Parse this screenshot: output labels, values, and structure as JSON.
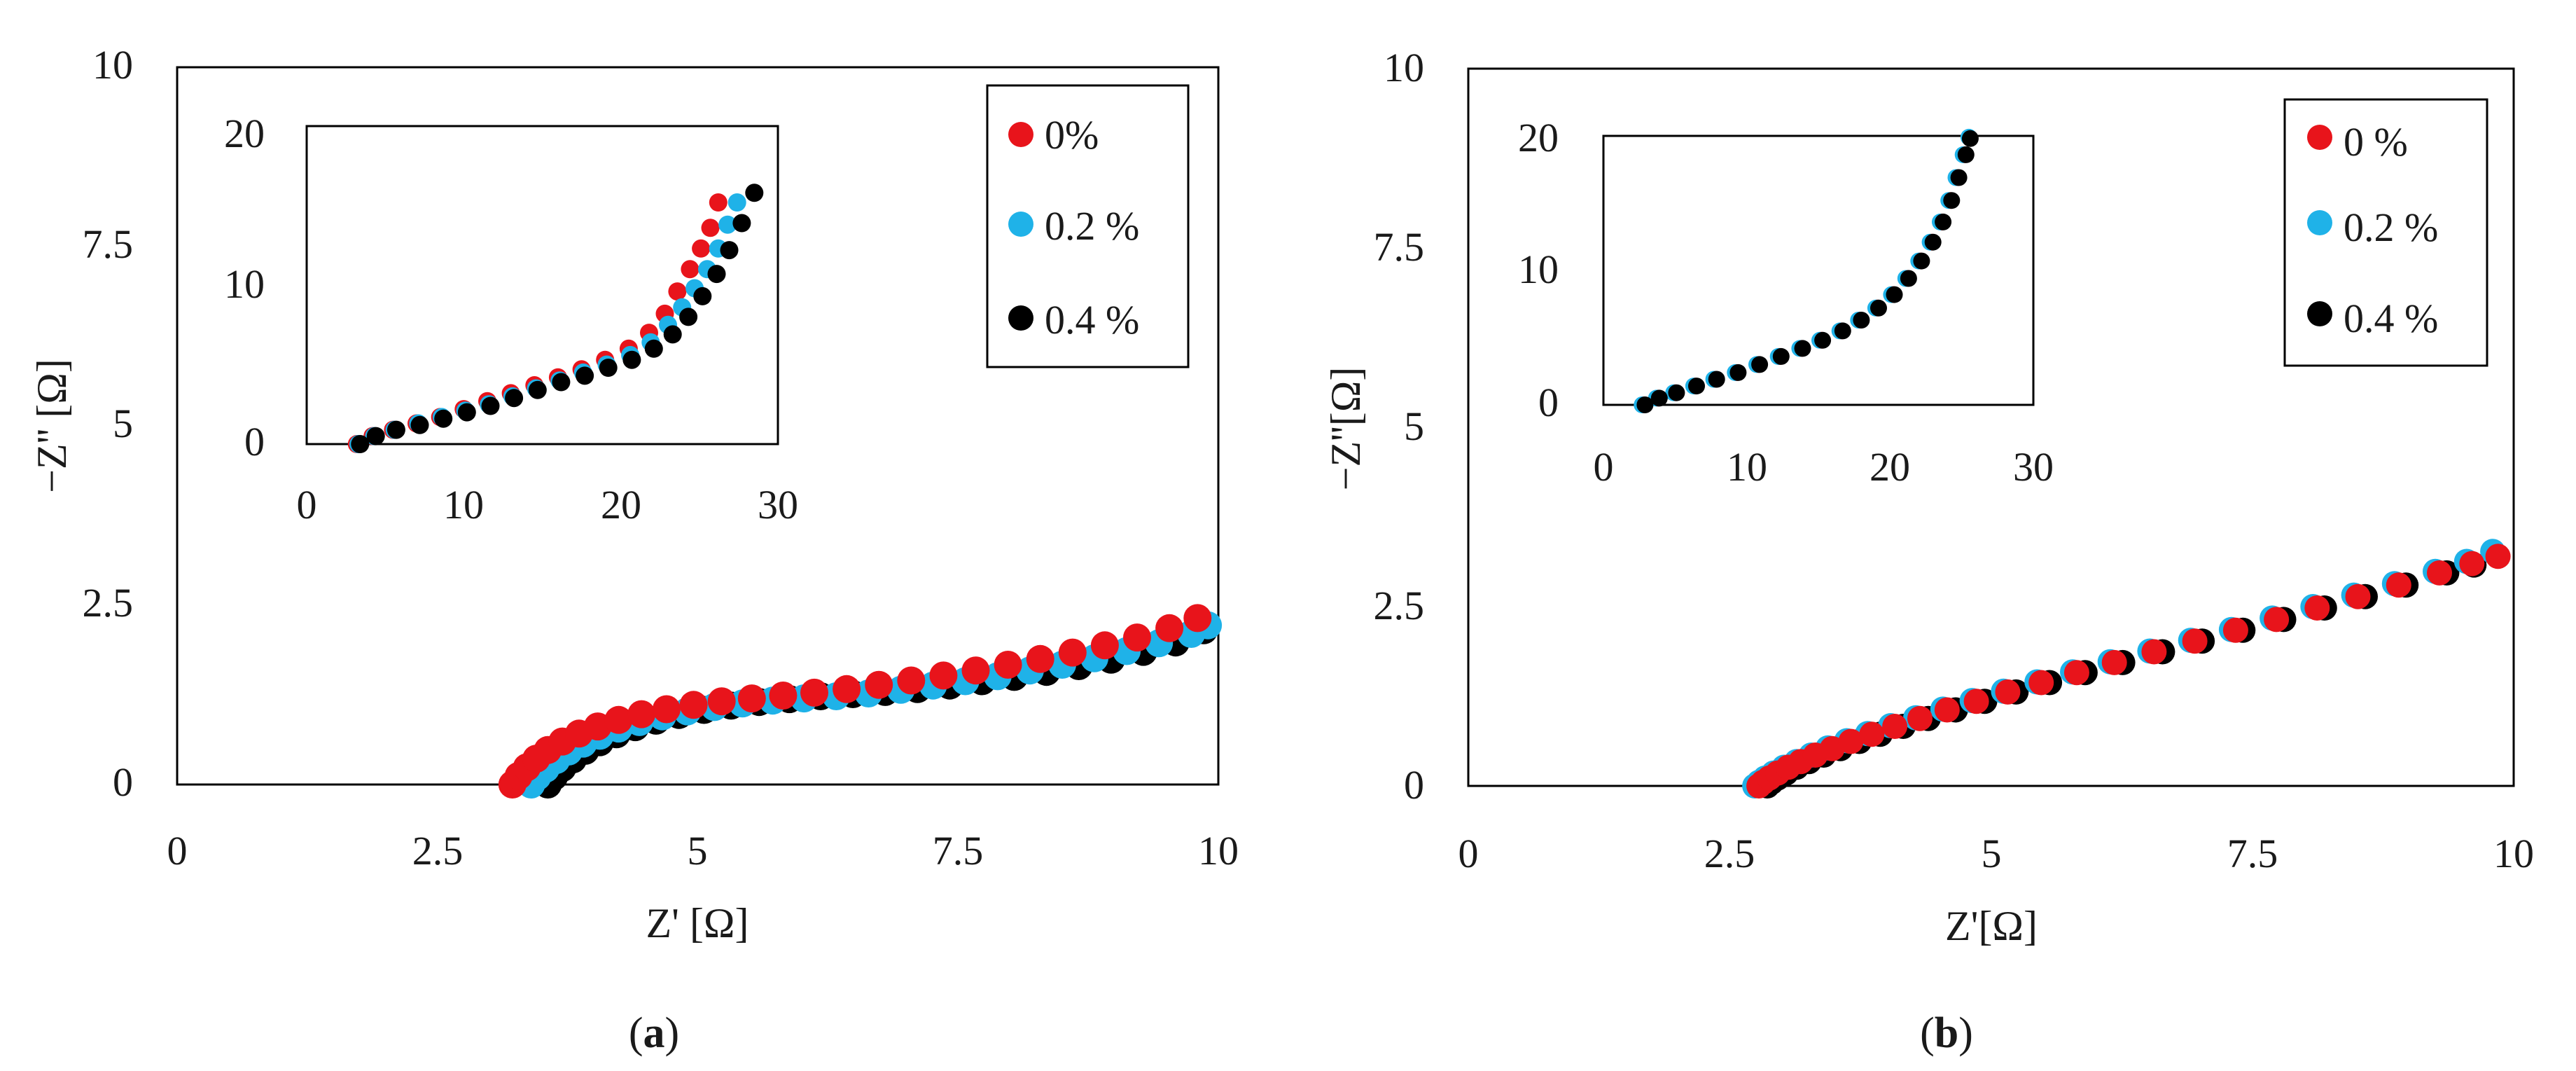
{
  "colors": {
    "s0": "#e8141b",
    "s1": "#1fb2e8",
    "s2": "#000000",
    "frame": "#000000"
  },
  "chart_data": [
    {
      "id": "a",
      "type": "scatter",
      "caption": "a",
      "xlabel": "Z' [Ω]",
      "ylabel": "−Z'' [Ω]",
      "xlim": [
        0,
        10
      ],
      "ylim": [
        0,
        10
      ],
      "xticks": [
        "0",
        "2.5",
        "5",
        "7.5",
        "10"
      ],
      "yticks": [
        "0",
        "2.5",
        "5",
        "7.5",
        "10"
      ],
      "legend": [
        "0%",
        "0.2 %",
        "0.4 %"
      ],
      "series": [
        {
          "name": "0%",
          "x": [
            3.22,
            3.28,
            3.36,
            3.45,
            3.56,
            3.7,
            3.86,
            4.04,
            4.24,
            4.46,
            4.7,
            4.96,
            5.23,
            5.52,
            5.82,
            6.12,
            6.43,
            6.74,
            7.05,
            7.36,
            7.67,
            7.98,
            8.29,
            8.6,
            8.91,
            9.22,
            9.53,
            9.8
          ],
          "y": [
            0.0,
            0.12,
            0.24,
            0.36,
            0.48,
            0.6,
            0.71,
            0.81,
            0.9,
            0.98,
            1.05,
            1.11,
            1.16,
            1.2,
            1.24,
            1.28,
            1.33,
            1.39,
            1.45,
            1.52,
            1.59,
            1.67,
            1.75,
            1.84,
            1.94,
            2.05,
            2.18,
            2.32
          ]
        },
        {
          "name": "0.2 %",
          "x": [
            3.4,
            3.46,
            3.54,
            3.64,
            3.76,
            3.9,
            4.06,
            4.24,
            4.44,
            4.66,
            4.9,
            5.16,
            5.43,
            5.72,
            6.02,
            6.33,
            6.64,
            6.95,
            7.26,
            7.57,
            7.88,
            8.19,
            8.5,
            8.81,
            9.12,
            9.43,
            9.74,
            9.9
          ],
          "y": [
            0.0,
            0.11,
            0.22,
            0.34,
            0.46,
            0.57,
            0.68,
            0.78,
            0.87,
            0.95,
            1.02,
            1.08,
            1.13,
            1.17,
            1.2,
            1.23,
            1.27,
            1.32,
            1.38,
            1.44,
            1.51,
            1.59,
            1.67,
            1.76,
            1.86,
            1.97,
            2.1,
            2.22
          ]
        },
        {
          "name": "0.4 %",
          "x": [
            3.56,
            3.62,
            3.7,
            3.8,
            3.92,
            4.06,
            4.22,
            4.4,
            4.6,
            4.82,
            5.06,
            5.32,
            5.59,
            5.88,
            6.18,
            6.49,
            6.8,
            7.11,
            7.42,
            7.73,
            8.04,
            8.35,
            8.66,
            8.97,
            9.28,
            9.59,
            9.86
          ],
          "y": [
            0.0,
            0.11,
            0.23,
            0.35,
            0.47,
            0.59,
            0.7,
            0.8,
            0.89,
            0.97,
            1.04,
            1.1,
            1.15,
            1.19,
            1.23,
            1.26,
            1.29,
            1.33,
            1.38,
            1.44,
            1.5,
            1.57,
            1.65,
            1.74,
            1.85,
            1.98,
            2.15
          ]
        }
      ],
      "inset": {
        "xlim": [
          0,
          30
        ],
        "ylim": [
          0,
          20
        ],
        "xticks": [
          "0",
          "10",
          "20",
          "30"
        ],
        "yticks": [
          "0",
          "10",
          "20"
        ],
        "series": [
          {
            "name": "0%",
            "x": [
              3.2,
              4.2,
              5.5,
              7.0,
              8.5,
              10.0,
              11.5,
              13.0,
              14.5,
              16.0,
              17.5,
              19.0,
              20.5,
              21.8,
              22.8,
              23.6,
              24.4,
              25.1,
              25.7,
              26.2
            ],
            "y": [
              0.0,
              0.5,
              0.9,
              1.3,
              1.7,
              2.2,
              2.7,
              3.2,
              3.7,
              4.2,
              4.7,
              5.3,
              6.0,
              7.0,
              8.2,
              9.6,
              11.0,
              12.3,
              13.6,
              15.2
            ]
          },
          {
            "name": "0.2 %",
            "x": [
              3.3,
              4.3,
              5.6,
              7.1,
              8.6,
              10.1,
              11.6,
              13.1,
              14.6,
              16.1,
              17.6,
              19.1,
              20.6,
              21.9,
              23.0,
              23.9,
              24.7,
              25.5,
              26.2,
              26.8,
              27.4
            ],
            "y": [
              0.0,
              0.5,
              0.9,
              1.3,
              1.7,
              2.1,
              2.5,
              3.0,
              3.5,
              4.0,
              4.5,
              5.0,
              5.6,
              6.4,
              7.5,
              8.6,
              9.8,
              11.0,
              12.3,
              13.8,
              15.2
            ]
          },
          {
            "name": "0.4 %",
            "x": [
              3.4,
              4.4,
              5.7,
              7.2,
              8.7,
              10.2,
              11.7,
              13.2,
              14.7,
              16.2,
              17.7,
              19.2,
              20.7,
              22.1,
              23.3,
              24.3,
              25.2,
              26.1,
              26.9,
              27.7,
              28.5
            ],
            "y": [
              0.0,
              0.5,
              0.9,
              1.2,
              1.6,
              2.0,
              2.4,
              2.9,
              3.4,
              3.9,
              4.3,
              4.8,
              5.3,
              6.0,
              6.9,
              8.0,
              9.3,
              10.7,
              12.2,
              13.9,
              15.8
            ]
          }
        ]
      }
    },
    {
      "id": "b",
      "type": "scatter",
      "caption": "b",
      "xlabel": "Z'[Ω]",
      "ylabel": "−Z''[Ω]",
      "xlim": [
        0,
        10
      ],
      "ylim": [
        0,
        10
      ],
      "xticks": [
        "0",
        "2.5",
        "5",
        "7.5",
        "10"
      ],
      "yticks": [
        "0",
        "2.5",
        "5",
        "7.5",
        "10"
      ],
      "legend": [
        "0 %",
        "0.2 %",
        "0.4 %"
      ],
      "series": [
        {
          "name": "0 %",
          "x": [
            2.78,
            2.82,
            2.88,
            2.96,
            3.06,
            3.18,
            3.32,
            3.48,
            3.66,
            3.86,
            4.08,
            4.32,
            4.58,
            4.86,
            5.16,
            5.48,
            5.82,
            6.18,
            6.56,
            6.95,
            7.34,
            7.73,
            8.12,
            8.51,
            8.9,
            9.29,
            9.6,
            9.85
          ],
          "y": [
            0.0,
            0.05,
            0.11,
            0.18,
            0.26,
            0.34,
            0.43,
            0.52,
            0.62,
            0.72,
            0.83,
            0.94,
            1.06,
            1.18,
            1.31,
            1.44,
            1.58,
            1.72,
            1.87,
            2.02,
            2.17,
            2.32,
            2.48,
            2.64,
            2.8,
            2.97,
            3.1,
            3.2
          ]
        },
        {
          "name": "0.2 %",
          "x": [
            2.74,
            2.78,
            2.84,
            2.92,
            3.02,
            3.14,
            3.28,
            3.44,
            3.62,
            3.82,
            4.04,
            4.28,
            4.54,
            4.82,
            5.12,
            5.44,
            5.78,
            6.14,
            6.52,
            6.91,
            7.3,
            7.69,
            8.08,
            8.47,
            8.86,
            9.25,
            9.55,
            9.8
          ],
          "y": [
            0.0,
            0.05,
            0.11,
            0.18,
            0.26,
            0.34,
            0.43,
            0.53,
            0.63,
            0.73,
            0.84,
            0.95,
            1.07,
            1.19,
            1.32,
            1.45,
            1.59,
            1.73,
            1.88,
            2.03,
            2.18,
            2.34,
            2.5,
            2.66,
            2.82,
            2.99,
            3.13,
            3.27
          ]
        },
        {
          "name": "0.4 %",
          "x": [
            2.86,
            2.9,
            2.96,
            3.04,
            3.14,
            3.26,
            3.4,
            3.56,
            3.74,
            3.94,
            4.16,
            4.4,
            4.66,
            4.94,
            5.24,
            5.56,
            5.9,
            6.26,
            6.64,
            7.02,
            7.41,
            7.8,
            8.19,
            8.58,
            8.97,
            9.36,
            9.62
          ],
          "y": [
            0.0,
            0.05,
            0.11,
            0.18,
            0.26,
            0.34,
            0.43,
            0.52,
            0.62,
            0.72,
            0.83,
            0.94,
            1.06,
            1.18,
            1.31,
            1.44,
            1.58,
            1.72,
            1.87,
            2.02,
            2.17,
            2.32,
            2.48,
            2.64,
            2.8,
            2.97,
            3.08
          ]
        }
      ],
      "inset": {
        "xlim": [
          0,
          30
        ],
        "ylim": [
          0,
          20
        ],
        "xticks": [
          "0",
          "10",
          "20",
          "30"
        ],
        "yticks": [
          "0",
          "10",
          "20"
        ],
        "series": [
          {
            "name": "0 %",
            "x": [
              2.8,
              3.8,
              5.0,
              6.4,
              7.8,
              9.3,
              10.8,
              12.3,
              13.8,
              15.2,
              16.6,
              17.9,
              19.1,
              20.2,
              21.2,
              22.1,
              22.9,
              23.6,
              24.2,
              24.7,
              25.2
            ],
            "y": [
              0.0,
              0.5,
              0.9,
              1.4,
              1.9,
              2.4,
              3.0,
              3.6,
              4.2,
              4.8,
              5.5,
              6.3,
              7.2,
              8.2,
              9.4,
              10.7,
              12.1,
              13.6,
              15.2,
              16.9,
              18.6
            ]
          },
          {
            "name": "0.2 %",
            "x": [
              2.7,
              3.7,
              4.9,
              6.3,
              7.7,
              9.2,
              10.7,
              12.2,
              13.7,
              15.1,
              16.5,
              17.8,
              19.0,
              20.1,
              21.1,
              22.0,
              22.8,
              23.5,
              24.1,
              24.6,
              25.1,
              25.5
            ],
            "y": [
              0.0,
              0.5,
              0.9,
              1.4,
              1.9,
              2.4,
              3.0,
              3.6,
              4.2,
              4.8,
              5.5,
              6.3,
              7.2,
              8.2,
              9.4,
              10.7,
              12.1,
              13.6,
              15.2,
              16.9,
              18.6,
              19.9
            ]
          },
          {
            "name": "0.4 %",
            "x": [
              2.9,
              3.9,
              5.1,
              6.5,
              7.9,
              9.4,
              10.9,
              12.4,
              13.9,
              15.3,
              16.7,
              18.0,
              19.2,
              20.3,
              21.3,
              22.2,
              23.0,
              23.7,
              24.3,
              24.8,
              25.3,
              25.6
            ],
            "y": [
              0.0,
              0.5,
              0.9,
              1.4,
              1.9,
              2.4,
              3.0,
              3.6,
              4.2,
              4.8,
              5.5,
              6.3,
              7.2,
              8.2,
              9.4,
              10.7,
              12.1,
              13.6,
              15.2,
              16.9,
              18.6,
              19.8
            ]
          }
        ]
      }
    }
  ]
}
